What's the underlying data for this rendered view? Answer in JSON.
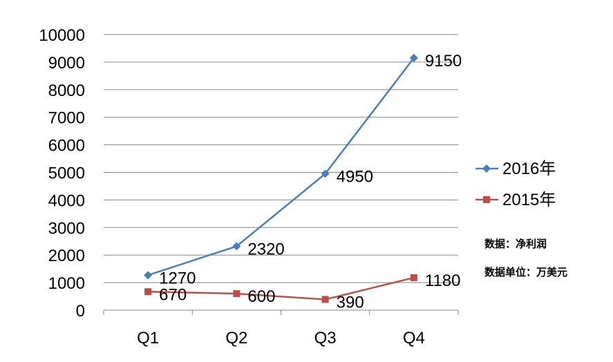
{
  "chart_data": {
    "type": "line",
    "categories": [
      "Q1",
      "Q2",
      "Q3",
      "Q4"
    ],
    "series": [
      {
        "name": "2016年",
        "values": [
          1270,
          2320,
          4950,
          9150
        ],
        "color": "#4a7ebb",
        "marker": "diamond"
      },
      {
        "name": "2015年",
        "values": [
          670,
          600,
          390,
          1180
        ],
        "color": "#be4b48",
        "marker": "square"
      }
    ],
    "y_ticks": [
      "0",
      "1000",
      "2000",
      "3000",
      "4000",
      "5000",
      "6000",
      "7000",
      "8000",
      "9000",
      "10000"
    ],
    "ylim": [
      0,
      10000
    ],
    "grid": true,
    "legend": "right",
    "annotations": [
      "数据：净利润",
      "数据单位：万美元"
    ]
  }
}
